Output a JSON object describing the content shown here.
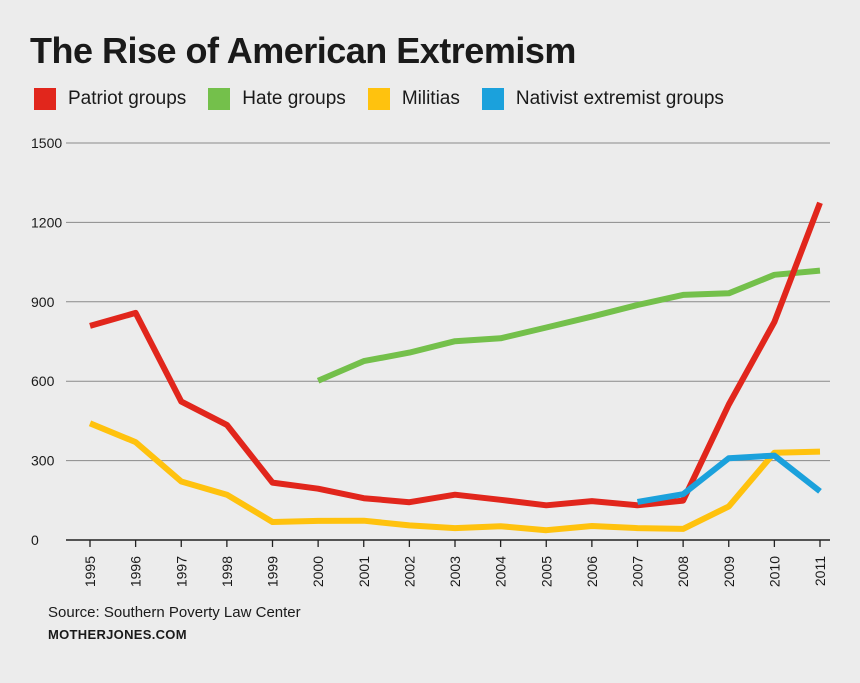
{
  "header": {
    "title": "The Rise of American Extremism"
  },
  "footer": {
    "source": "Source: Southern Poverty Law Center",
    "credit": "MOTHERJONES.COM"
  },
  "chart_data": {
    "type": "line",
    "title": "The Rise of American Extremism",
    "xlabel": "",
    "ylabel": "",
    "x": [
      "1995",
      "1996",
      "1997",
      "1998",
      "1999",
      "2000",
      "2001",
      "2002",
      "2003",
      "2004",
      "2005",
      "2006",
      "2007",
      "2008",
      "2009",
      "2010",
      "2011"
    ],
    "y_ticks": [
      0,
      300,
      600,
      900,
      1200,
      1500
    ],
    "ylim": [
      0,
      1500
    ],
    "grid": true,
    "legend_position": "top",
    "series": [
      {
        "name": "Patriot groups",
        "color": "#e1261c",
        "values": [
          809,
          858,
          523,
          435,
          217,
          194,
          158,
          143,
          171,
          152,
          131,
          147,
          131,
          149,
          512,
          824,
          1274
        ]
      },
      {
        "name": "Hate groups",
        "color": "#74c04b",
        "values": [
          null,
          null,
          null,
          null,
          null,
          602,
          676,
          708,
          751,
          762,
          803,
          844,
          888,
          926,
          932,
          1002,
          1018
        ]
      },
      {
        "name": "Militias",
        "color": "#ffc20e",
        "values": [
          441,
          370,
          221,
          171,
          68,
          72,
          73,
          55,
          45,
          52,
          37,
          53,
          45,
          42,
          127,
          330,
          334
        ]
      },
      {
        "name": "Nativist extremist groups",
        "color": "#1ba1dc",
        "values": [
          null,
          null,
          null,
          null,
          null,
          null,
          null,
          null,
          null,
          null,
          null,
          null,
          144,
          173,
          309,
          319,
          184
        ]
      }
    ]
  }
}
